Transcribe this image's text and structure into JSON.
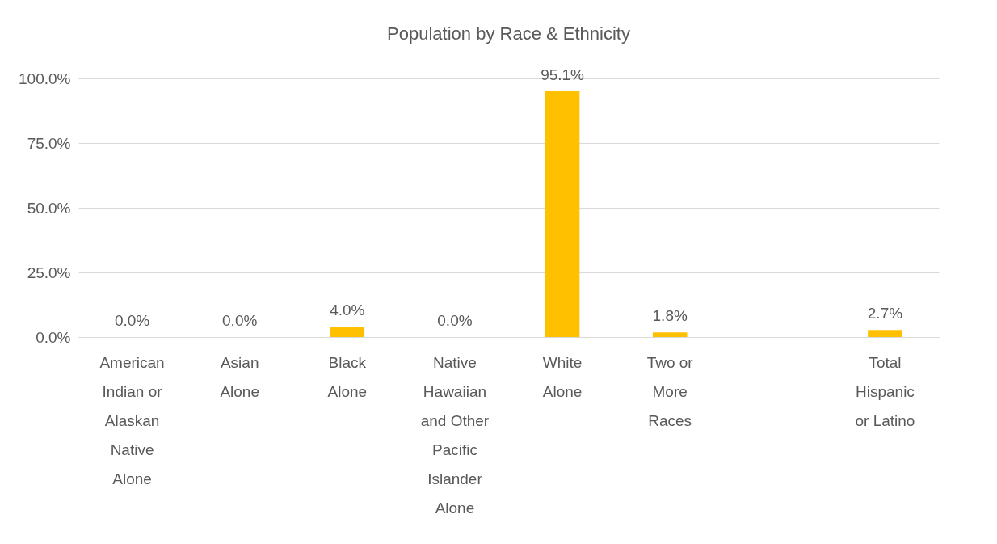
{
  "chart_data": {
    "type": "bar",
    "title": "Population by Race & Ethnicity",
    "categories": [
      "American Indian or Alaskan Native Alone",
      "Asian Alone",
      "Black Alone",
      "Native Hawaiian and Other Pacific Islander Alone",
      "White Alone",
      "Two or More Races",
      null,
      "Total Hispanic or Latino"
    ],
    "values": [
      0.0,
      0.0,
      4.0,
      0.0,
      95.1,
      1.8,
      null,
      2.7
    ],
    "value_labels": [
      "0.0%",
      "0.0%",
      "4.0%",
      "0.0%",
      "95.1%",
      "1.8%",
      null,
      "2.7%"
    ],
    "color": "#ffc000",
    "ylim": [
      0,
      100
    ],
    "yticks": [
      {
        "value": 0,
        "label": "0.0%"
      },
      {
        "value": 25,
        "label": "25.0%"
      },
      {
        "value": 50,
        "label": "50.0%"
      },
      {
        "value": 75,
        "label": "75.0%"
      },
      {
        "value": 100,
        "label": "100.0%"
      }
    ],
    "grid": "y"
  }
}
